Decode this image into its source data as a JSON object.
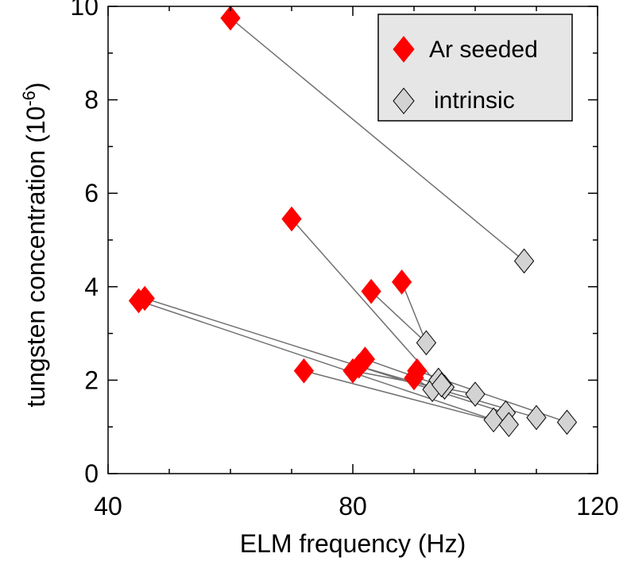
{
  "chart_data": {
    "type": "scatter",
    "xlabel": "ELM frequency (Hz)",
    "ylabel_main": "tungsten concentration (10",
    "ylabel_exp": "-6",
    "ylabel_close": ")",
    "xlim": [
      40,
      120
    ],
    "ylim": [
      0,
      10
    ],
    "xticks": [
      40,
      80,
      120
    ],
    "yticks": [
      0,
      2,
      4,
      6,
      8,
      10
    ],
    "legend_position": "top-right",
    "colors": {
      "ar_seeded": "#ff0000",
      "intrinsic": "#d3d3d3",
      "connector": "#707070",
      "legend_bg": "#e6e6e6"
    },
    "series": [
      {
        "name": "Ar seeded",
        "marker": "filled-diamond",
        "points": [
          {
            "x": 60,
            "y": 9.75
          },
          {
            "x": 70,
            "y": 5.45
          },
          {
            "x": 83,
            "y": 3.9
          },
          {
            "x": 88,
            "y": 4.1
          },
          {
            "x": 45,
            "y": 3.7
          },
          {
            "x": 46,
            "y": 3.75
          },
          {
            "x": 72,
            "y": 2.2
          },
          {
            "x": 80,
            "y": 2.2
          },
          {
            "x": 81,
            "y": 2.3
          },
          {
            "x": 82,
            "y": 2.45
          },
          {
            "x": 90,
            "y": 2.05
          },
          {
            "x": 90.5,
            "y": 2.2
          }
        ]
      },
      {
        "name": "intrinsic",
        "marker": "open-diamond",
        "points": [
          {
            "x": 108,
            "y": 4.55
          },
          {
            "x": 92,
            "y": 2.8
          },
          {
            "x": 93,
            "y": 1.8
          },
          {
            "x": 94,
            "y": 2.0
          },
          {
            "x": 95,
            "y": 1.85
          },
          {
            "x": 100,
            "y": 1.7
          },
          {
            "x": 103,
            "y": 1.15
          },
          {
            "x": 105,
            "y": 1.3
          },
          {
            "x": 105.5,
            "y": 1.05
          },
          {
            "x": 110,
            "y": 1.2
          },
          {
            "x": 115,
            "y": 1.1
          },
          {
            "x": 94.5,
            "y": 1.9
          }
        ]
      }
    ],
    "connections": [
      {
        "from": [
          60,
          9.75
        ],
        "to": [
          108,
          4.55
        ]
      },
      {
        "from": [
          70,
          5.45
        ],
        "to": [
          94,
          1.9
        ]
      },
      {
        "from": [
          83,
          3.9
        ],
        "to": [
          92,
          2.8
        ]
      },
      {
        "from": [
          88,
          4.1
        ],
        "to": [
          92,
          2.8
        ]
      },
      {
        "from": [
          45,
          3.7
        ],
        "to": [
          103,
          1.15
        ]
      },
      {
        "from": [
          46,
          3.75
        ],
        "to": [
          105,
          1.3
        ]
      },
      {
        "from": [
          72,
          2.2
        ],
        "to": [
          105.5,
          1.05
        ]
      },
      {
        "from": [
          80,
          2.2
        ],
        "to": [
          100,
          1.7
        ]
      },
      {
        "from": [
          81,
          2.3
        ],
        "to": [
          110,
          1.2
        ]
      },
      {
        "from": [
          82,
          2.45
        ],
        "to": [
          95,
          1.85
        ]
      },
      {
        "from": [
          90,
          2.05
        ],
        "to": [
          93,
          1.8
        ]
      },
      {
        "from": [
          90.5,
          2.2
        ],
        "to": [
          115,
          1.1
        ]
      }
    ]
  }
}
